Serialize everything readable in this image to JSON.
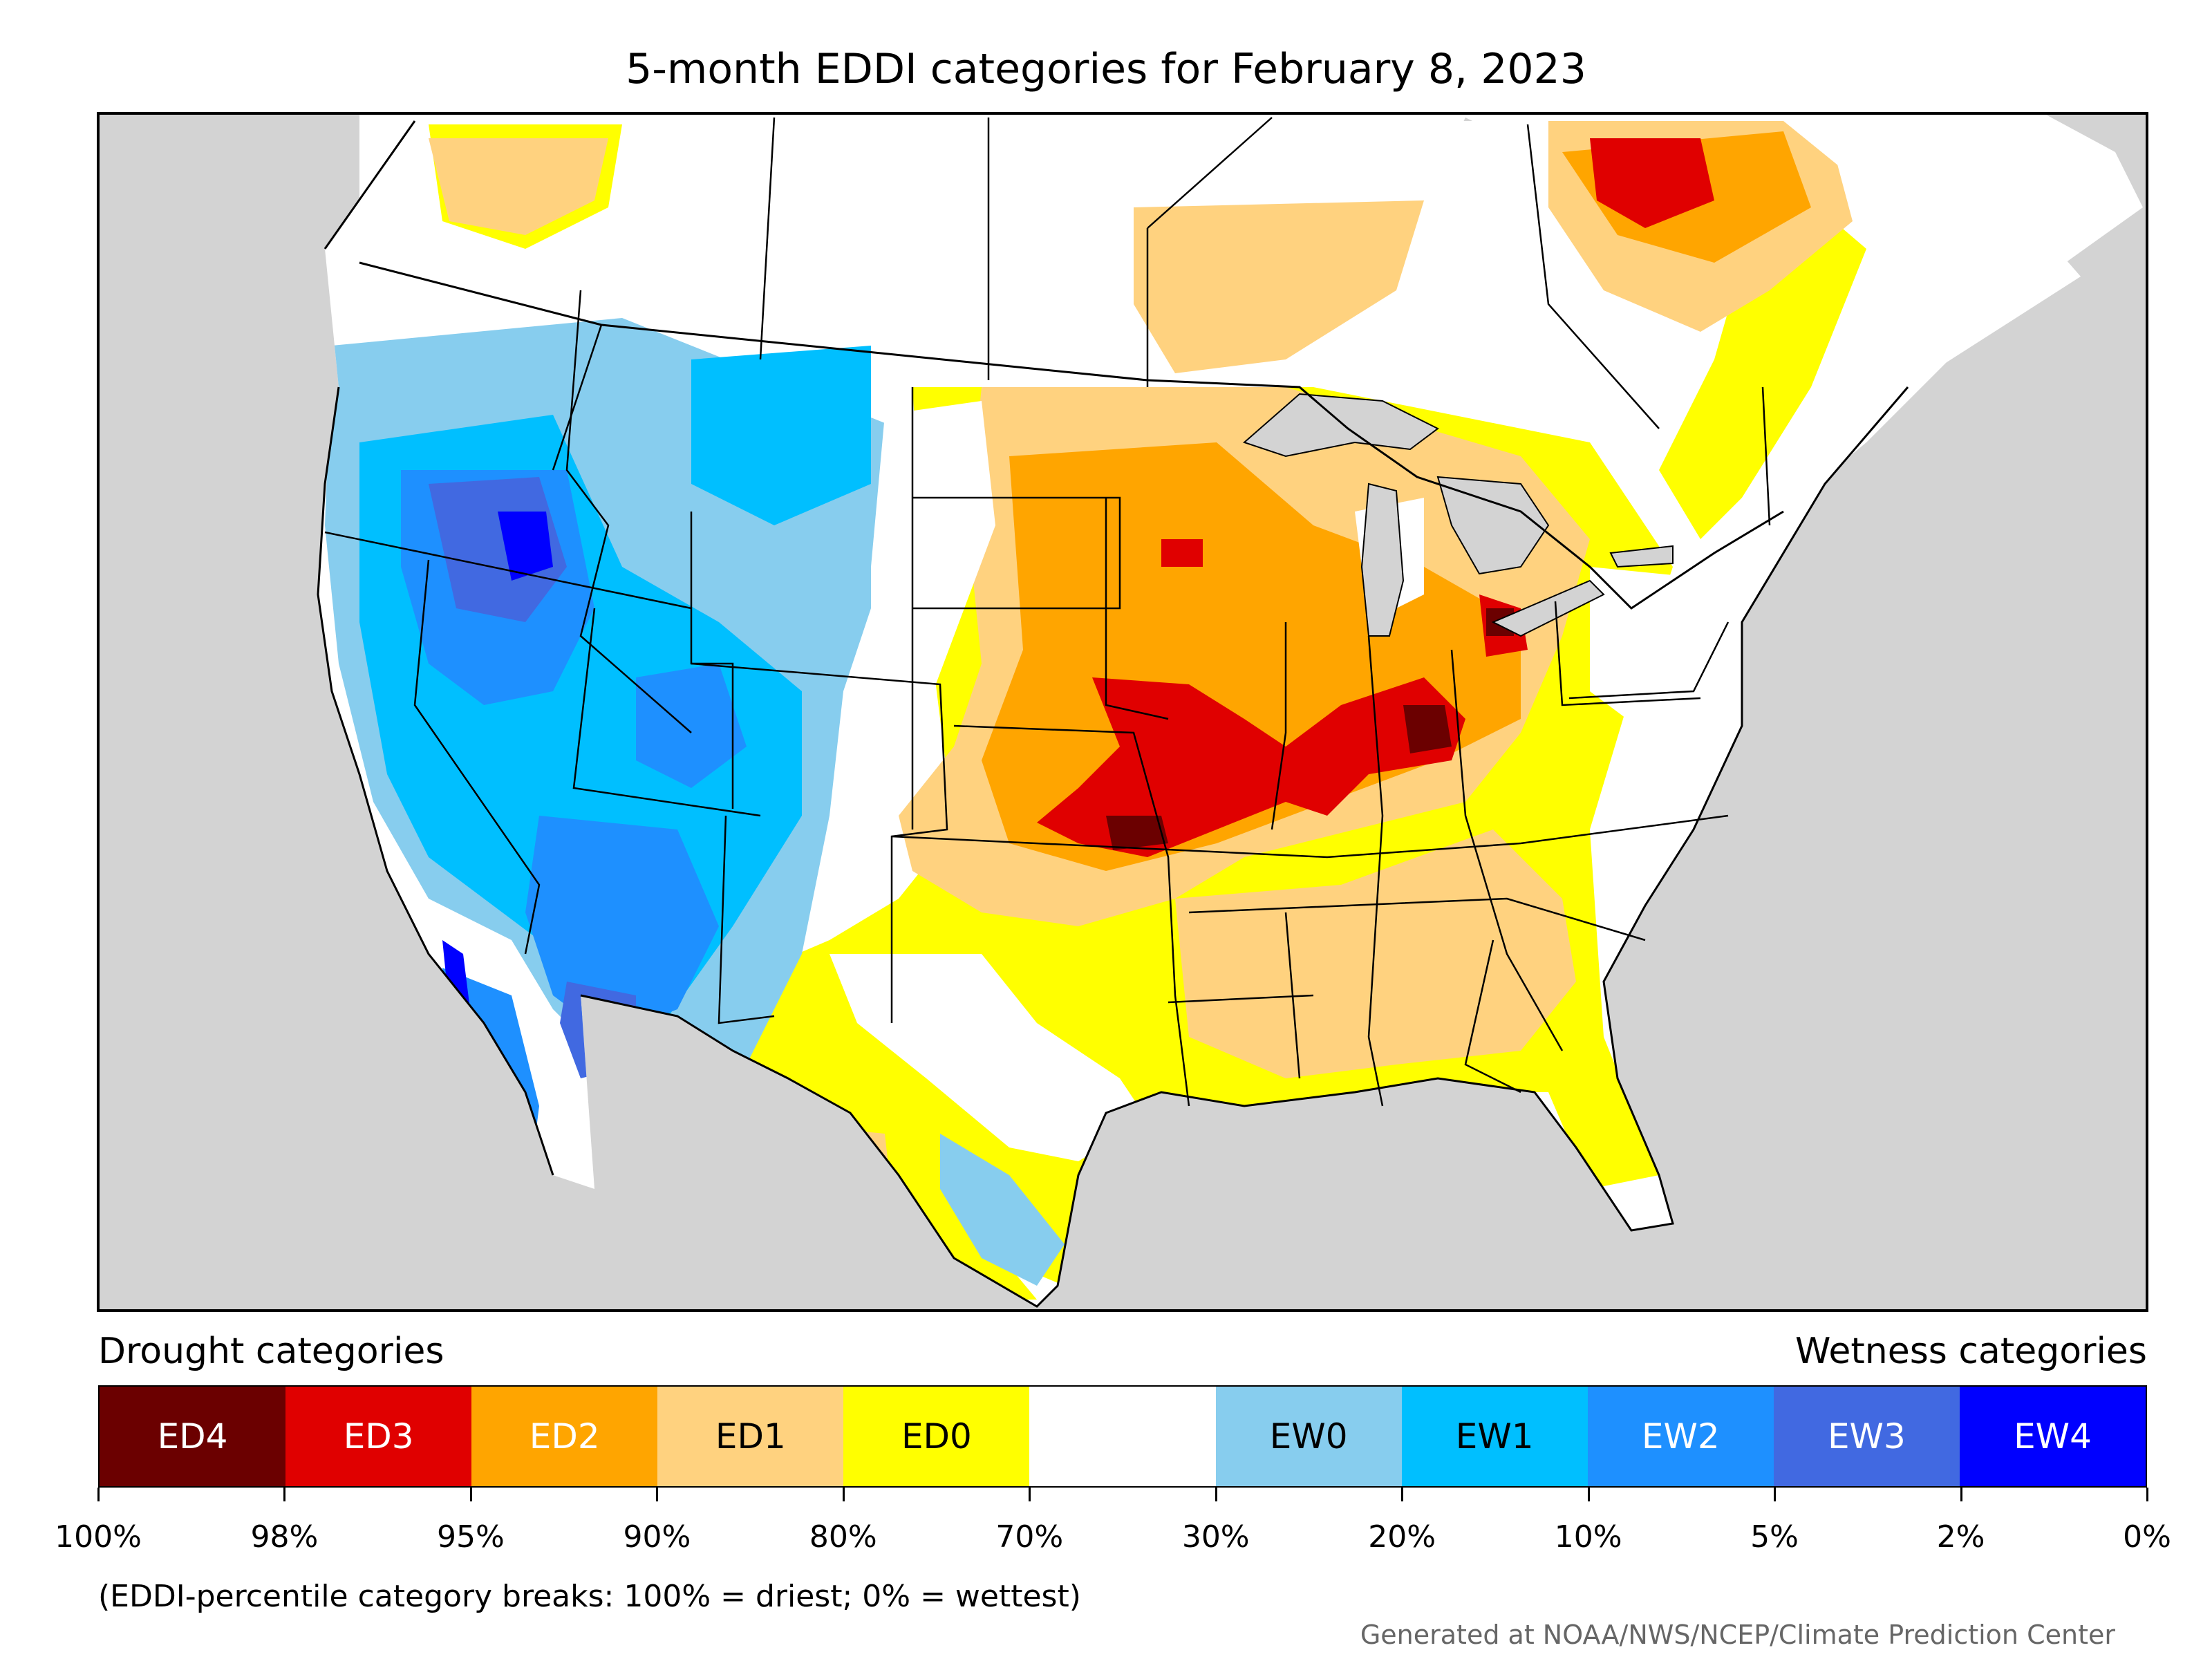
{
  "title": "5-month EDDI categories for February 8, 2023",
  "map": {
    "background_color": "#d3d3d3",
    "water_color": "#d3d3d3",
    "border_color": "#000000"
  },
  "legend": {
    "left_heading": "Drought categories",
    "right_heading": "Wetness categories",
    "categories": [
      {
        "label": "ED4",
        "color": "#6b0000",
        "text_color": "#ffffff"
      },
      {
        "label": "ED3",
        "color": "#e00000",
        "text_color": "#ffffff"
      },
      {
        "label": "ED2",
        "color": "#ffa500",
        "text_color": "#ffffff"
      },
      {
        "label": "ED1",
        "color": "#ffd27f",
        "text_color": "#000000"
      },
      {
        "label": "ED0",
        "color": "#ffff00",
        "text_color": "#000000"
      },
      {
        "label": "",
        "color": "#ffffff",
        "text_color": "#000000"
      },
      {
        "label": "EW0",
        "color": "#87cdee",
        "text_color": "#000000"
      },
      {
        "label": "EW1",
        "color": "#00bfff",
        "text_color": "#000000"
      },
      {
        "label": "EW2",
        "color": "#1e90ff",
        "text_color": "#ffffff"
      },
      {
        "label": "EW3",
        "color": "#4169e1",
        "text_color": "#ffffff"
      },
      {
        "label": "EW4",
        "color": "#0000ff",
        "text_color": "#ffffff"
      }
    ],
    "breaks": [
      "100%",
      "98%",
      "95%",
      "90%",
      "80%",
      "70%",
      "30%",
      "20%",
      "10%",
      "5%",
      "2%",
      "0%"
    ]
  },
  "note": "(EDDI-percentile category breaks: 100% = driest; 0% = wettest)",
  "credit": "Generated at NOAA/NWS/NCEP/Climate Prediction Center"
}
